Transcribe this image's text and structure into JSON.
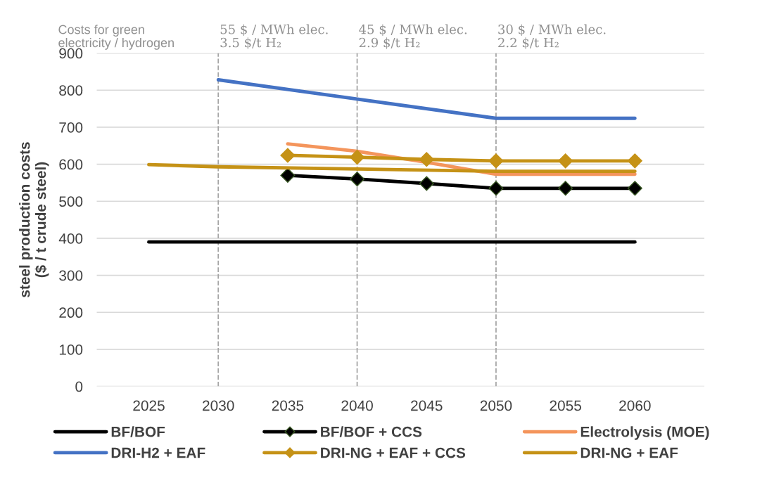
{
  "chart_data": {
    "type": "line",
    "ylabel": "steel production costs\n($ / t crude steel)",
    "categories": [
      "2025",
      "2030",
      "2035",
      "2040",
      "2045",
      "2050",
      "2055",
      "2060"
    ],
    "ylim": [
      0,
      900
    ],
    "yticks": [
      0,
      100,
      200,
      300,
      400,
      500,
      600,
      700,
      800,
      900
    ],
    "grid": "y",
    "legend": "bottom",
    "series": [
      {
        "name": "BF/BOF",
        "color": "#000000",
        "marker": "none",
        "values": [
          390,
          390,
          390,
          390,
          390,
          390,
          390,
          390
        ]
      },
      {
        "name": "BF/BOF + CCS",
        "color": "#000000",
        "marker": "diamond",
        "values": [
          null,
          null,
          570,
          560,
          548,
          535,
          535,
          535
        ]
      },
      {
        "name": "Electrolysis (MOE)",
        "color": "#f4955c",
        "marker": "none",
        "values": [
          null,
          null,
          655,
          635,
          605,
          573,
          573,
          573
        ]
      },
      {
        "name": "DRI-H2 + EAF",
        "color": "#4472c4",
        "marker": "none",
        "values": [
          null,
          828,
          null,
          776,
          null,
          724,
          null,
          724
        ]
      },
      {
        "name": "DRI-NG + EAF + CCS",
        "color": "#c59216",
        "marker": "diamond",
        "values": [
          null,
          null,
          624,
          619,
          613,
          609,
          609,
          609
        ]
      },
      {
        "name": "DRI-NG + EAF",
        "color": "#c59216",
        "marker": "none",
        "values": [
          599,
          593,
          null,
          587,
          null,
          581,
          null,
          581
        ]
      }
    ],
    "ref_lines": [
      {
        "axis": "x",
        "value": "2030",
        "label": "55 $ / MWh elec.\n3.5 $/t H₂",
        "color": "#a6a6a6",
        "line_style": "dashed"
      },
      {
        "axis": "x",
        "value": "2040",
        "label": "45 $ / MWh elec.\n2.9 $/t H₂",
        "color": "#a6a6a6",
        "line_style": "dashed"
      },
      {
        "axis": "x",
        "value": "2050",
        "label": "30 $ / MWh elec.\n2.2 $/t H₂",
        "color": "#a6a6a6",
        "line_style": "dashed"
      }
    ],
    "annotations": [
      "Costs for green\nelectricity / hydrogen"
    ]
  }
}
